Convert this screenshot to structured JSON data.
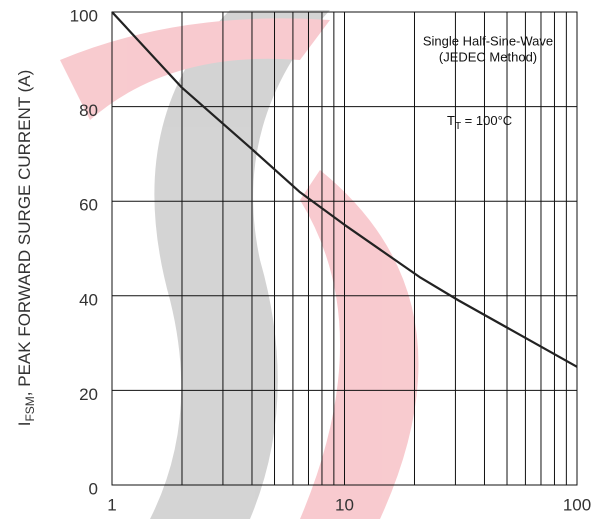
{
  "chart_data": {
    "type": "line",
    "y_label": {
      "main": "I",
      "sub": "FSM",
      "rest": ", PEAK FORWARD SURGE CURRENT (A)"
    },
    "annotations": {
      "line1": "Single Half-Sine-Wave",
      "line2": "(JEDEC Method)",
      "temp_main": "T",
      "temp_sub": "T",
      "temp_rest": " = 100°C"
    },
    "x": [
      1,
      2,
      4,
      6.4,
      10,
      21,
      31,
      100
    ],
    "series": [
      {
        "name": "IFSM",
        "color": "#222222",
        "values": [
          100,
          84,
          71,
          62,
          55,
          44,
          39,
          25
        ]
      }
    ],
    "xlog": true,
    "xlim": [
      1,
      100
    ],
    "xticks": [
      1,
      10,
      100
    ],
    "xminor": [
      2,
      3,
      4,
      5,
      6,
      7,
      8,
      9,
      20,
      30,
      40,
      50,
      60,
      70,
      80,
      90
    ],
    "ylim": [
      0,
      100
    ],
    "yticks": [
      0,
      20,
      40,
      60,
      80,
      100
    ],
    "grid": true
  }
}
